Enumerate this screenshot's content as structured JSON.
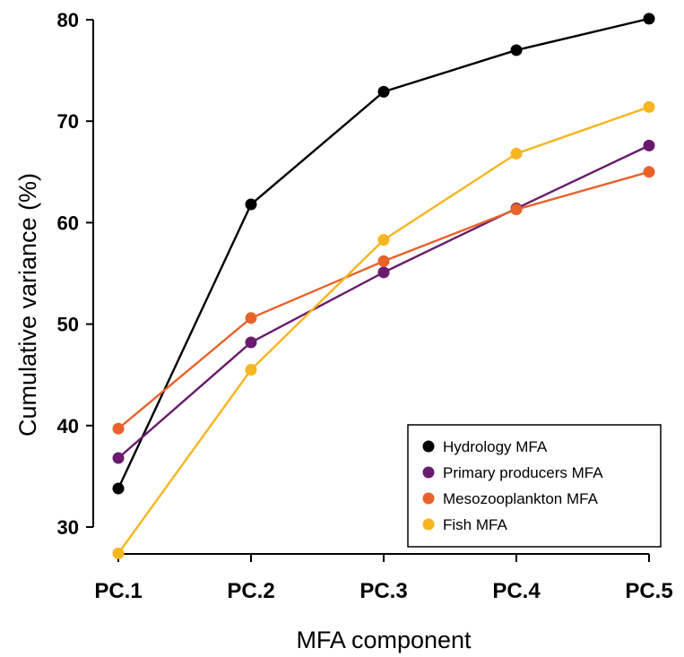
{
  "chart_data": {
    "type": "line",
    "title": "",
    "xlabel": "MFA component",
    "ylabel": "Cumulative variance (%)",
    "categories": [
      "PC.1",
      "PC.2",
      "PC.3",
      "PC.4",
      "PC.5"
    ],
    "yticks": [
      "30",
      "40",
      "50",
      "60",
      "70",
      "80"
    ],
    "ylim": [
      27,
      80.5
    ],
    "grid": false,
    "legend_position": "bottom-right",
    "series": [
      {
        "name": "Hydrology MFA",
        "color": "#000000",
        "values": [
          33.8,
          61.8,
          72.9,
          77.0,
          80.1
        ]
      },
      {
        "name": "Primary producers MFA",
        "color": "#6A1B6E",
        "values": [
          36.8,
          48.2,
          55.1,
          61.4,
          67.6
        ]
      },
      {
        "name": "Mesozooplankton MFA",
        "color": "#E8632A",
        "values": [
          39.7,
          50.6,
          56.2,
          61.3,
          65.0
        ]
      },
      {
        "name": "Fish MFA",
        "color": "#F7B51E",
        "values": [
          27.4,
          45.5,
          58.3,
          66.8,
          71.4
        ]
      }
    ]
  }
}
